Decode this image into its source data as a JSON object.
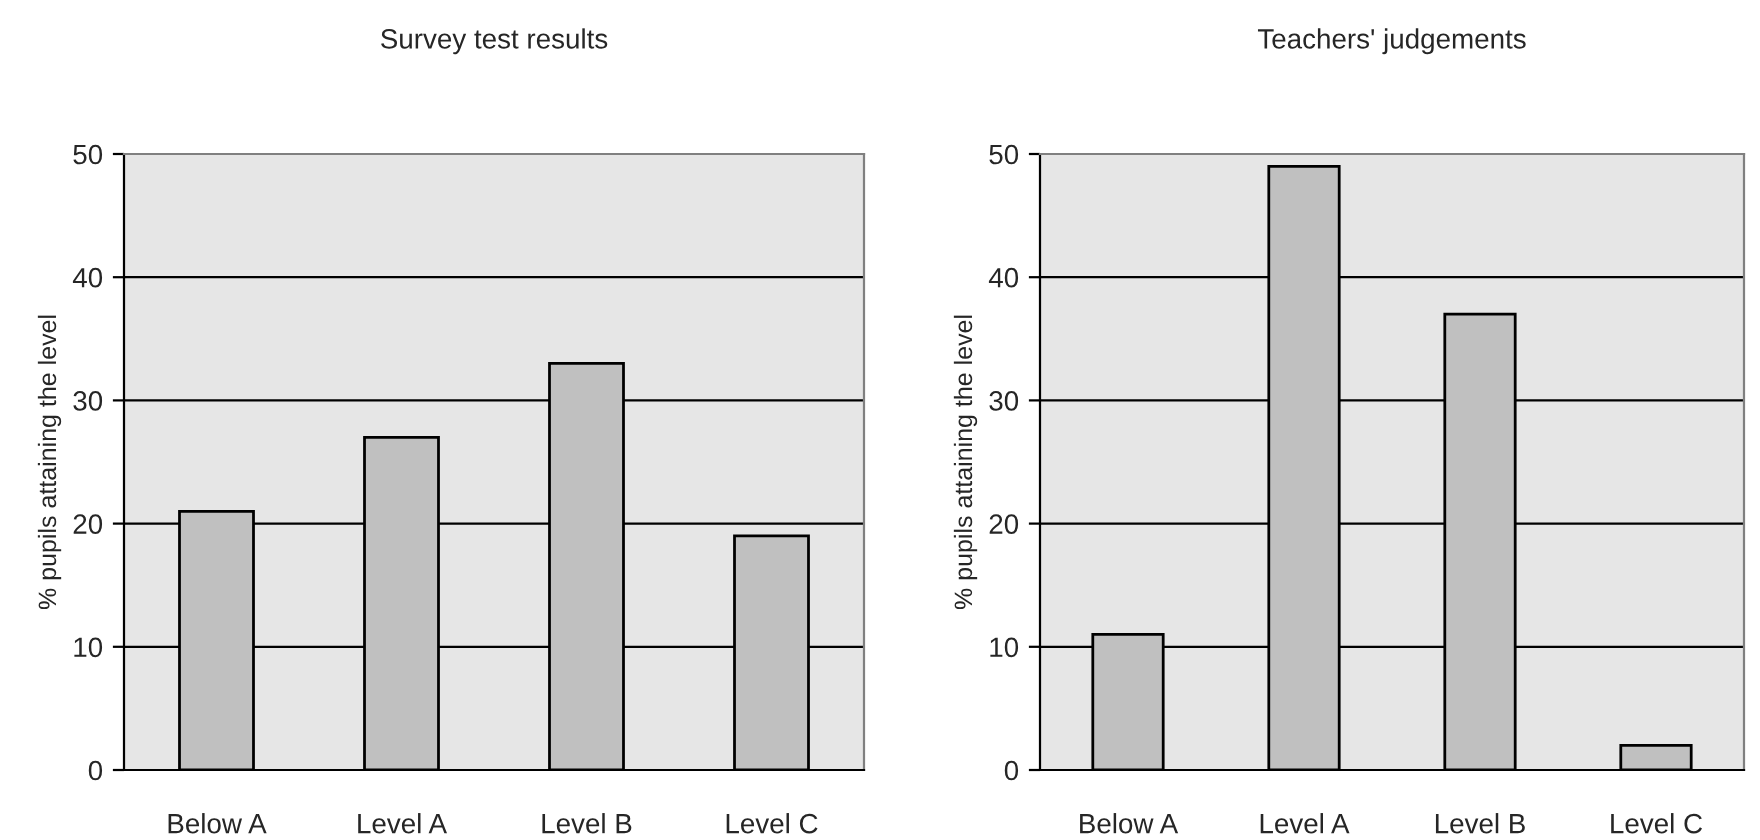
{
  "chart_data": [
    {
      "type": "bar",
      "title": "Survey test results",
      "ylabel": "% pupils attaining the level",
      "categories": [
        "Below A",
        "Level A",
        "Level B",
        "Level C"
      ],
      "values": [
        21,
        27,
        33,
        19
      ],
      "color": "#c0c0c0",
      "ylim": [
        0,
        50
      ],
      "yticks": [
        0,
        10,
        20,
        30,
        40,
        50
      ],
      "grid": "y"
    },
    {
      "type": "bar",
      "title": "Teachers' judgements",
      "ylabel": "% pupils attaining the level",
      "categories": [
        "Below A",
        "Level A",
        "Level B",
        "Level C"
      ],
      "values": [
        11,
        49,
        37,
        2
      ],
      "color": "#c0c0c0",
      "ylim": [
        0,
        50
      ],
      "yticks": [
        0,
        10,
        20,
        30,
        40,
        50
      ],
      "grid": "y"
    }
  ]
}
